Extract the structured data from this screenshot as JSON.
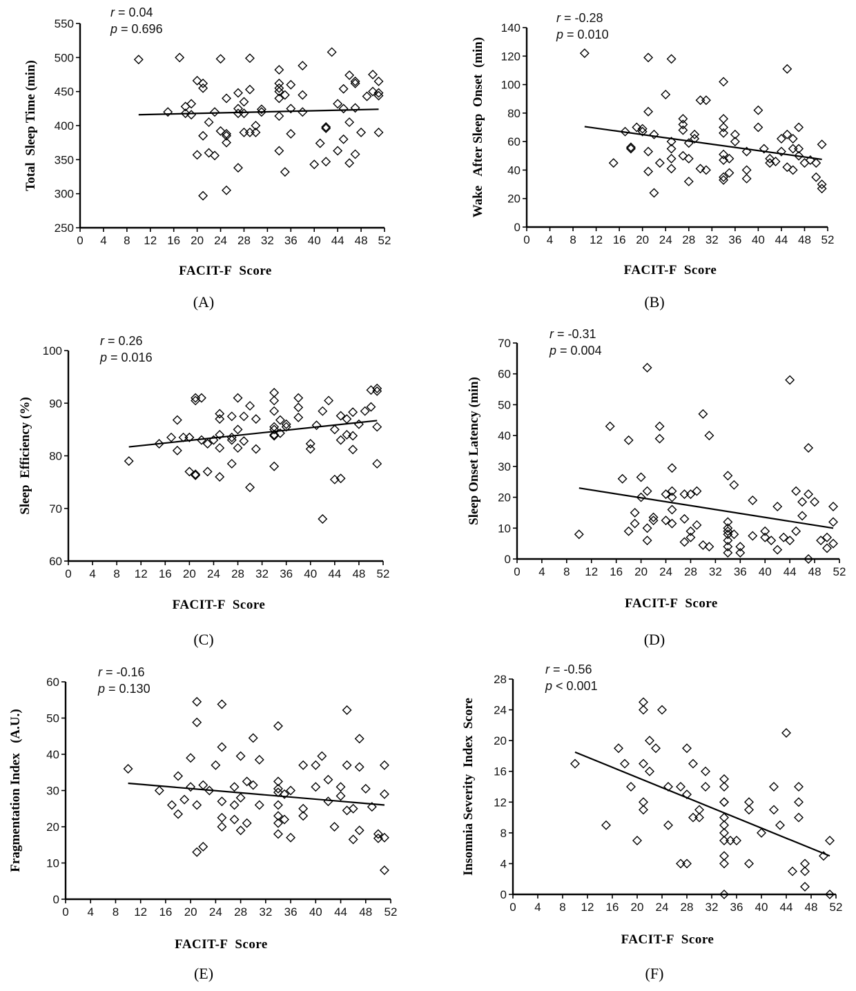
{
  "chart_data": [
    {
      "panel": "A",
      "type": "scatter",
      "xlabel": "FACIT-F  Score",
      "ylabel": "Total  Sleep Time (min)",
      "xlim": [
        0,
        52
      ],
      "ylim": [
        250,
        550
      ],
      "xticks": [
        0,
        4,
        8,
        12,
        16,
        20,
        24,
        28,
        32,
        36,
        40,
        44,
        48,
        52
      ],
      "yticks": [
        250,
        300,
        350,
        400,
        450,
        500,
        550
      ],
      "r_label": "r",
      "r_value": " = 0.04",
      "p_label": "p",
      "p_value": " = 0.696",
      "fit": [
        [
          10,
          416
        ],
        [
          51,
          424
        ]
      ],
      "x": [
        10,
        15,
        17,
        18,
        18,
        19,
        19,
        20,
        20,
        21,
        21,
        21,
        21,
        22,
        22,
        23,
        23,
        24,
        24,
        25,
        25,
        25,
        25,
        25,
        27,
        27,
        27,
        27,
        28,
        28,
        28,
        29,
        29,
        29,
        30,
        30,
        31,
        31,
        34,
        34,
        34,
        34,
        34,
        34,
        34,
        35,
        35,
        36,
        36,
        36,
        38,
        38,
        38,
        40,
        41,
        42,
        42,
        42,
        43,
        44,
        44,
        45,
        45,
        45,
        46,
        46,
        46,
        47,
        47,
        47,
        47,
        48,
        49,
        50,
        50,
        51,
        51,
        51,
        51
      ],
      "y": [
        497,
        420,
        500,
        428,
        418,
        432,
        416,
        357,
        466,
        462,
        455,
        385,
        297,
        405,
        360,
        420,
        356,
        498,
        392,
        440,
        388,
        385,
        375,
        305,
        448,
        425,
        418,
        338,
        435,
        418,
        390,
        499,
        453,
        390,
        400,
        390,
        424,
        420,
        482,
        462,
        455,
        450,
        440,
        414,
        363,
        445,
        332,
        460,
        425,
        388,
        488,
        445,
        420,
        343,
        374,
        398,
        396,
        347,
        508,
        432,
        363,
        454,
        425,
        380,
        474,
        405,
        345,
        465,
        462,
        426,
        358,
        390,
        443,
        475,
        450,
        465,
        448,
        444,
        390
      ]
    },
    {
      "panel": "B",
      "type": "scatter",
      "xlabel": "FACIT-F  Score",
      "ylabel": "Wake   After Sleep  Onset  (min)",
      "xlim": [
        0,
        52
      ],
      "ylim": [
        0,
        140
      ],
      "xticks": [
        0,
        4,
        8,
        12,
        16,
        20,
        24,
        28,
        32,
        36,
        40,
        44,
        48,
        52
      ],
      "yticks": [
        0,
        20,
        40,
        60,
        80,
        100,
        120,
        140
      ],
      "r_label": "r",
      "r_value": " = -0.28",
      "p_label": "p",
      "p_value": " = 0.010",
      "fit": [
        [
          10,
          70.5
        ],
        [
          51,
          47.5
        ]
      ],
      "x": [
        10,
        15,
        17,
        18,
        18,
        19,
        20,
        20,
        21,
        21,
        21,
        21,
        22,
        22,
        23,
        24,
        25,
        25,
        25,
        25,
        25,
        27,
        27,
        27,
        27,
        28,
        28,
        28,
        29,
        29,
        30,
        30,
        31,
        31,
        34,
        34,
        34,
        34,
        34,
        34,
        34,
        34,
        35,
        35,
        36,
        36,
        38,
        38,
        38,
        40,
        40,
        41,
        42,
        42,
        43,
        44,
        44,
        45,
        45,
        45,
        46,
        46,
        46,
        47,
        47,
        47,
        48,
        49,
        50,
        50,
        51,
        51,
        51
      ],
      "y": [
        122,
        45,
        67,
        55,
        56,
        70,
        69,
        67,
        119,
        81,
        53,
        39,
        65,
        24,
        45,
        93,
        118,
        60,
        55,
        48,
        41,
        76,
        72,
        68,
        50,
        59,
        48,
        32,
        65,
        62,
        89,
        41,
        89,
        40,
        102,
        76,
        70,
        66,
        51,
        47,
        35,
        33,
        48,
        38,
        65,
        60,
        53,
        40,
        34,
        82,
        70,
        55,
        48,
        45,
        46,
        62,
        53,
        111,
        65,
        42,
        62,
        55,
        40,
        70,
        55,
        50,
        45,
        47,
        45,
        35,
        58,
        30,
        27
      ]
    },
    {
      "panel": "C",
      "type": "scatter",
      "xlabel": "FACIT-F  Score",
      "ylabel": "Sleep  Efficiency (%)",
      "xlim": [
        0,
        52
      ],
      "ylim": [
        60,
        100
      ],
      "xticks": [
        0,
        4,
        8,
        12,
        16,
        20,
        24,
        28,
        32,
        36,
        40,
        44,
        48,
        52
      ],
      "yticks": [
        60,
        70,
        80,
        90,
        100
      ],
      "r_label": "r",
      "r_value": " = 0.26",
      "p_label": "p",
      "p_value": " = 0.016",
      "fit": [
        [
          10,
          81.7
        ],
        [
          51,
          86.7
        ]
      ],
      "x": [
        10,
        15,
        17,
        18,
        18,
        19,
        20,
        20,
        20,
        21,
        21,
        21,
        21,
        22,
        22,
        23,
        23,
        24,
        25,
        25,
        25,
        25,
        25,
        27,
        27,
        27,
        27,
        28,
        28,
        28,
        29,
        29,
        30,
        30,
        31,
        31,
        34,
        34,
        34,
        34,
        34,
        34,
        34,
        34,
        35,
        35,
        36,
        36,
        38,
        38,
        38,
        40,
        40,
        41,
        42,
        42,
        43,
        44,
        44,
        45,
        45,
        45,
        46,
        46,
        47,
        47,
        47,
        48,
        49,
        50,
        50,
        51,
        51,
        51,
        51
      ],
      "y": [
        79,
        82.3,
        83.5,
        86.8,
        81,
        83.5,
        83.5,
        77,
        83.5,
        91,
        90.5,
        76.3,
        76.5,
        91,
        83,
        82.3,
        77,
        83,
        88,
        87,
        84,
        81.5,
        76,
        87.5,
        83.5,
        78.5,
        83,
        91,
        85,
        81.5,
        87.5,
        82.8,
        89.5,
        74,
        87,
        81.3,
        92,
        90.5,
        88.5,
        85.5,
        85,
        84,
        83.8,
        78,
        86.8,
        84.3,
        86,
        85.5,
        91,
        89.2,
        87.3,
        82.3,
        81.3,
        85.8,
        88.5,
        68,
        90.5,
        85,
        75.5,
        87.6,
        83,
        75.7,
        87,
        84,
        88.3,
        83.8,
        81.2,
        86,
        88.5,
        89.3,
        92.5,
        92.8,
        92.3,
        85.5,
        78.5
      ]
    },
    {
      "panel": "D",
      "type": "scatter",
      "xlabel": "FACIT-F  Score",
      "ylabel": "Sleep Onset Latency (min)",
      "xlim": [
        0,
        52
      ],
      "ylim": [
        0,
        70
      ],
      "xticks": [
        0,
        4,
        8,
        12,
        16,
        20,
        24,
        28,
        32,
        36,
        40,
        44,
        48,
        52
      ],
      "yticks": [
        0,
        10,
        20,
        30,
        40,
        50,
        60,
        70
      ],
      "r_label": "r",
      "r_value": " = -0.31",
      "p_label": "p",
      "p_value": " = 0.004",
      "fit": [
        [
          10,
          23
        ],
        [
          51,
          10
        ]
      ],
      "x": [
        10,
        15,
        17,
        18,
        18,
        19,
        19,
        20,
        20,
        21,
        21,
        21,
        21,
        22,
        22,
        23,
        23,
        24,
        24,
        25,
        25,
        25,
        25,
        25,
        27,
        27,
        27,
        28,
        28,
        28,
        29,
        29,
        30,
        30,
        31,
        31,
        34,
        34,
        34,
        34,
        34,
        34,
        34,
        34,
        35,
        35,
        36,
        36,
        38,
        38,
        40,
        40,
        41,
        42,
        42,
        43,
        44,
        44,
        45,
        45,
        46,
        46,
        47,
        47,
        47,
        48,
        49,
        50,
        50,
        51,
        51,
        51
      ],
      "y": [
        8,
        43,
        26,
        38.5,
        9,
        15,
        11.5,
        26.5,
        20,
        62,
        22,
        10,
        6,
        13.5,
        12.5,
        43,
        39,
        21,
        12.5,
        29.5,
        22,
        20,
        16,
        11.5,
        21,
        13,
        5.5,
        21,
        9,
        7,
        22,
        11,
        47,
        4.5,
        40,
        4,
        27,
        12,
        10,
        9,
        8,
        6,
        4,
        2,
        24,
        8,
        4,
        2,
        19,
        7.5,
        9,
        7,
        6,
        17,
        3,
        7,
        58,
        6,
        22,
        9,
        18.5,
        14,
        36,
        21,
        0,
        18.5,
        6,
        7,
        3.5,
        17,
        12,
        5
      ]
    },
    {
      "panel": "E",
      "type": "scatter",
      "xlabel": "FACIT-F  Score",
      "ylabel": "Fragmentation Index   (A.U.)",
      "xlim": [
        0,
        52
      ],
      "ylim": [
        0,
        60
      ],
      "xticks": [
        0,
        4,
        8,
        12,
        16,
        20,
        24,
        28,
        32,
        36,
        40,
        44,
        48,
        52
      ],
      "yticks": [
        0,
        10,
        20,
        30,
        40,
        50,
        60
      ],
      "r_label": "r",
      "r_value": " = -0.16",
      "p_label": "p",
      "p_value": " = 0.130",
      "fit": [
        [
          10,
          32
        ],
        [
          51,
          26
        ]
      ],
      "x": [
        10,
        15,
        17,
        18,
        18,
        19,
        20,
        20,
        21,
        21,
        21,
        21,
        22,
        22,
        23,
        24,
        25,
        25,
        25,
        25,
        25,
        27,
        27,
        27,
        28,
        28,
        28,
        29,
        29,
        30,
        30,
        31,
        31,
        34,
        34,
        34,
        34,
        34,
        34,
        34,
        34,
        35,
        35,
        36,
        36,
        38,
        38,
        38,
        40,
        40,
        41,
        42,
        42,
        43,
        44,
        44,
        45,
        45,
        45,
        46,
        46,
        47,
        47,
        47,
        48,
        49,
        50,
        50,
        51,
        51,
        51,
        51
      ],
      "y": [
        36,
        30,
        26,
        34,
        23.5,
        27.5,
        39,
        31,
        54.5,
        48.8,
        26,
        13,
        31.5,
        14.5,
        30,
        37,
        53.8,
        42,
        27,
        22.5,
        20,
        31,
        26,
        22,
        39.5,
        28,
        19,
        32.5,
        21,
        44.5,
        31.5,
        38.5,
        26,
        47.8,
        32.5,
        30.5,
        29.5,
        26,
        23,
        21,
        18,
        29,
        22,
        30,
        17,
        37,
        25,
        23,
        37,
        31,
        39.5,
        33,
        27,
        20,
        31,
        28.5,
        52.2,
        37,
        24.5,
        25,
        16.5,
        44.3,
        36.5,
        19,
        30.5,
        25.5,
        18,
        16.8,
        37,
        29,
        17,
        8
      ]
    },
    {
      "panel": "F",
      "type": "scatter",
      "xlabel": "FACIT-F  Score",
      "ylabel": "Insomnia Severity  Index  Score",
      "xlim": [
        0,
        52
      ],
      "ylim": [
        0,
        28
      ],
      "xticks": [
        0,
        4,
        8,
        12,
        16,
        20,
        24,
        28,
        32,
        36,
        40,
        44,
        48,
        52
      ],
      "yticks": [
        0,
        4,
        8,
        12,
        16,
        20,
        24,
        28
      ],
      "r_label": "r",
      "r_value": " = -0.56",
      "p_label": "p",
      "p_value": " < 0.001",
      "fit": [
        [
          10,
          18.5
        ],
        [
          51,
          5
        ]
      ],
      "x": [
        10,
        15,
        17,
        18,
        19,
        20,
        21,
        21,
        21,
        21,
        21,
        22,
        22,
        23,
        24,
        25,
        25,
        27,
        27,
        28,
        28,
        28,
        29,
        29,
        30,
        30,
        31,
        31,
        34,
        34,
        34,
        34,
        34,
        34,
        34,
        34,
        34,
        34,
        34,
        35,
        36,
        38,
        38,
        38,
        40,
        42,
        42,
        43,
        44,
        45,
        46,
        46,
        46,
        47,
        47,
        47,
        50,
        51,
        51
      ],
      "y": [
        17,
        9,
        19,
        17,
        14,
        7,
        25,
        24,
        17,
        12,
        11,
        20,
        16,
        19,
        24,
        14,
        9,
        14,
        4,
        19,
        13,
        4,
        17,
        10,
        11,
        10,
        16,
        14,
        15,
        14,
        12,
        10,
        9,
        8,
        7,
        5,
        4,
        0,
        12,
        7,
        7,
        12,
        11,
        4,
        8,
        14,
        11,
        9,
        21,
        3,
        14,
        12,
        10,
        4,
        3,
        1,
        5,
        7,
        0
      ]
    }
  ],
  "panel_labels": [
    "(A)",
    "(B)",
    "(C)",
    "(D)",
    "(E)",
    "(F)"
  ]
}
